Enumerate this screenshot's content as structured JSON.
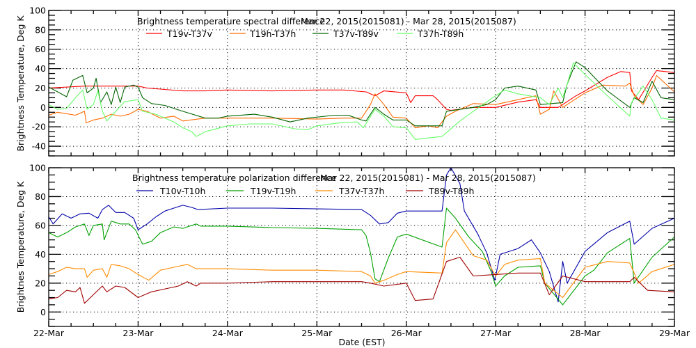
{
  "chart_data": [
    {
      "type": "line",
      "title": "Brightness temperature spectral difference",
      "date_range": "Mar 22, 2015(2015081) - Mar 28, 2015(2015087)",
      "xlabel": "",
      "ylabel": "Brightness Temperature, Deg K",
      "xlim": [
        22,
        29
      ],
      "ylim": [
        -50,
        100
      ],
      "yticks": [
        "100",
        "80",
        "60",
        "40",
        "20",
        "0",
        "-20",
        "-40"
      ],
      "ytick_values": [
        100,
        80,
        60,
        40,
        20,
        0,
        -20,
        -40
      ],
      "grid": true,
      "legend_placement": "top",
      "series": [
        {
          "name": "T19v-T37v",
          "color": "#ff0000",
          "x": [
            22,
            22.4,
            22.75,
            23,
            23.1,
            23.5,
            23.75,
            24,
            24.5,
            25,
            25.3,
            25.55,
            25.65,
            25.75,
            26,
            26.05,
            26.1,
            26.3,
            26.35,
            26.45,
            26.5,
            26.75,
            27,
            27.25,
            27.45,
            27.5,
            27.7,
            27.75,
            27.9,
            28,
            28.25,
            28.4,
            28.5,
            28.52,
            28.6,
            28.75,
            28.8,
            29
          ],
          "y": [
            20,
            22,
            22,
            22,
            20,
            17,
            17,
            18,
            17,
            18,
            18,
            16,
            12,
            17,
            15,
            5,
            12,
            12,
            8,
            -2,
            -3,
            0,
            0,
            5.5,
            8,
            0,
            0,
            3,
            12,
            17,
            31,
            37,
            36,
            17,
            8,
            31,
            38,
            36
          ]
        },
        {
          "name": "T19h-T37h",
          "color": "#ff6a00",
          "x": [
            22,
            22.1,
            22.3,
            22.4,
            22.42,
            22.5,
            22.6,
            22.7,
            22.8,
            22.9,
            23,
            23.1,
            23.25,
            23.4,
            23.5,
            23.75,
            24,
            24.5,
            25,
            25.3,
            25.5,
            25.6,
            25.65,
            25.75,
            25.85,
            26,
            26.1,
            26.25,
            26.35,
            26.45,
            26.55,
            26.75,
            27,
            27.25,
            27.45,
            27.5,
            27.6,
            27.65,
            27.75,
            28,
            28.2,
            28.45,
            28.5,
            28.55,
            28.65,
            28.75,
            28.8,
            29
          ],
          "y": [
            -8,
            -5,
            -8,
            -4,
            -16,
            -13,
            -11,
            -7,
            -9,
            -7,
            -2,
            -4,
            -11,
            -9,
            -14,
            -11,
            -11,
            -11,
            -12,
            -11,
            -11,
            3,
            14,
            3,
            -10,
            -11,
            -21,
            -19,
            -21,
            -9,
            -4,
            4,
            3,
            8,
            12,
            -7,
            -2,
            17,
            0,
            15,
            23,
            22,
            25,
            12,
            3,
            20,
            33,
            16
          ]
        },
        {
          "name": "T37v-T89v",
          "color": "#006400",
          "x": [
            22,
            22.1,
            22.2,
            22.27,
            22.38,
            22.43,
            22.5,
            22.53,
            22.58,
            22.65,
            22.7,
            22.75,
            22.8,
            22.85,
            22.95,
            23,
            23.05,
            23.15,
            23.3,
            23.5,
            23.75,
            23.9,
            24,
            24.3,
            24.5,
            24.7,
            24.9,
            25.2,
            25.35,
            25.5,
            25.55,
            25.65,
            25.75,
            25.85,
            26,
            26.1,
            26.4,
            26.45,
            26.75,
            26.9,
            27,
            27.1,
            27.25,
            27.45,
            27.5,
            27.75,
            27.8,
            27.9,
            28,
            28.25,
            28.5,
            28.55,
            28.65,
            28.75,
            28.85,
            29
          ],
          "y": [
            21,
            16,
            11,
            28,
            33,
            15,
            20,
            30,
            5,
            16,
            3,
            21,
            5,
            21,
            23,
            21,
            10,
            4,
            2,
            -4,
            -11,
            -11,
            -9,
            -7,
            -10,
            -15,
            -11,
            -8,
            -8,
            -13,
            -14,
            0,
            -7,
            -13,
            -13,
            -19,
            -19,
            -4,
            0,
            3,
            8,
            20,
            22,
            18,
            3,
            5,
            24,
            47,
            41,
            17,
            0,
            10,
            5,
            27,
            10,
            8
          ]
        },
        {
          "name": "T37h-T89h",
          "color": "#66ff66",
          "x": [
            22,
            22.1,
            22.2,
            22.3,
            22.38,
            22.43,
            22.5,
            22.55,
            22.6,
            22.65,
            22.75,
            22.85,
            23,
            23.05,
            23.2,
            23.4,
            23.5,
            23.6,
            23.65,
            23.75,
            24,
            24.25,
            24.5,
            24.75,
            24.9,
            25,
            25.25,
            25.45,
            25.52,
            25.65,
            25.75,
            25.85,
            26,
            26.1,
            26.4,
            26.45,
            26.6,
            26.75,
            27,
            27.1,
            27.25,
            27.5,
            27.6,
            27.7,
            27.75,
            27.8,
            27.87,
            28,
            28.25,
            28.5,
            28.52,
            28.65,
            28.75,
            28.85,
            29
          ],
          "y": [
            3,
            -2,
            -1,
            10,
            18,
            -2,
            3,
            17,
            -4,
            -14,
            -4,
            6,
            8,
            -4,
            -7,
            -15,
            -21,
            -25,
            -30,
            -25,
            -19,
            -17,
            -17,
            -22,
            -23,
            -19,
            -16,
            -15,
            -21,
            -2,
            -9,
            -20,
            -21,
            -33,
            -30,
            -26,
            -14,
            -4,
            12,
            18,
            14,
            10,
            3,
            20,
            10,
            24,
            46,
            34,
            12,
            -9,
            5,
            22,
            8,
            -11,
            -13
          ]
        }
      ]
    },
    {
      "type": "line",
      "title": "Brightness temperature polarization difference",
      "date_range": "Mar 22, 2015(2015081) - Mar 28, 2015(2015087)",
      "xlabel": "Date (EST)",
      "ylabel": "Brightnes Temperature, Deg K",
      "xlim": [
        22,
        29
      ],
      "ylim": [
        -10,
        100
      ],
      "xticks": [
        "22-Mar",
        "23-Mar",
        "24-Mar",
        "25-Mar",
        "26-Mar",
        "27-Mar",
        "28-Mar",
        "29-Mar"
      ],
      "xtick_values": [
        22,
        23,
        24,
        25,
        26,
        27,
        28,
        29
      ],
      "yticks": [
        "100",
        "80",
        "60",
        "40",
        "20",
        "0"
      ],
      "ytick_values": [
        100,
        80,
        60,
        40,
        20,
        0
      ],
      "grid": true,
      "legend_placement": "top",
      "series": [
        {
          "name": "T10v-T10h",
          "color": "#0000a8",
          "x": [
            22,
            22.05,
            22.15,
            22.25,
            22.35,
            22.45,
            22.55,
            22.6,
            22.67,
            22.75,
            22.85,
            22.95,
            23,
            23.1,
            23.2,
            23.3,
            23.4,
            23.5,
            23.6,
            23.67,
            24,
            24.5,
            25,
            25.5,
            25.6,
            25.7,
            25.8,
            25.9,
            26,
            26.4,
            26.45,
            26.5,
            26.6,
            26.65,
            26.8,
            26.9,
            26.99,
            27.05,
            27.25,
            27.4,
            27.5,
            27.6,
            27.7,
            27.75,
            27.8,
            28,
            28.25,
            28.5,
            28.55,
            28.75,
            29
          ],
          "y": [
            66,
            61,
            68,
            65,
            68,
            68.5,
            65,
            71,
            74,
            69,
            69,
            65,
            57,
            61,
            66,
            70,
            72,
            74,
            72.5,
            71,
            72,
            72,
            71.5,
            71,
            67,
            61,
            62,
            68.5,
            70,
            70,
            95,
            100,
            89,
            70,
            54,
            41,
            22,
            40,
            44,
            50,
            41,
            28,
            7,
            35,
            20,
            42,
            55,
            63,
            47,
            58,
            65
          ]
        },
        {
          "name": "T19v-T19h",
          "color": "#00a000",
          "x": [
            22,
            22.1,
            22.2,
            22.3,
            22.4,
            22.45,
            22.5,
            22.6,
            22.62,
            22.7,
            22.8,
            22.9,
            22.97,
            23.05,
            23.15,
            23.25,
            23.4,
            23.5,
            23.65,
            23.7,
            24,
            24.5,
            25,
            25.5,
            25.55,
            25.6,
            25.65,
            25.7,
            25.8,
            25.9,
            26,
            26.4,
            26.45,
            26.55,
            26.7,
            26.85,
            26.95,
            27,
            27.1,
            27.25,
            27.5,
            27.55,
            27.75,
            28,
            28.1,
            28.25,
            28.5,
            28.55,
            28.75,
            29
          ],
          "y": [
            55,
            52,
            55,
            59,
            61,
            53,
            60,
            61,
            50,
            63,
            61,
            61,
            57,
            47,
            49,
            55,
            59,
            58,
            61,
            59.5,
            59.5,
            58.5,
            58,
            57,
            53,
            41,
            23,
            21,
            37.5,
            52,
            54,
            45,
            72,
            65,
            52,
            42,
            28,
            18,
            25,
            31,
            32,
            20,
            5,
            25,
            29,
            41,
            51,
            20,
            38,
            52
          ]
        },
        {
          "name": "T37v-T37h",
          "color": "#ff8c00",
          "x": [
            22,
            22.1,
            22.2,
            22.3,
            22.4,
            22.43,
            22.5,
            22.6,
            22.65,
            22.7,
            22.8,
            22.9,
            23,
            23.12,
            23.25,
            23.4,
            23.55,
            23.65,
            24,
            24.5,
            25,
            25.5,
            25.6,
            25.65,
            25.75,
            25.9,
            26,
            26.4,
            26.45,
            26.55,
            26.75,
            26.9,
            27,
            27.1,
            27.25,
            27.5,
            27.55,
            27.75,
            28,
            28.25,
            28.5,
            28.6,
            28.75,
            29
          ],
          "y": [
            26,
            28,
            31,
            30,
            30,
            24,
            29,
            30,
            24,
            33,
            32,
            30,
            26,
            22,
            29,
            31,
            33,
            30,
            30,
            29,
            29,
            28,
            25,
            20,
            22,
            26,
            28,
            27,
            48,
            57,
            39,
            36,
            25,
            33,
            36,
            37,
            20,
            10,
            31,
            35,
            34,
            20,
            28,
            33
          ]
        },
        {
          "name": "T89v-T89h",
          "color": "#a00000",
          "x": [
            22,
            22.1,
            22.2,
            22.3,
            22.35,
            22.4,
            22.5,
            22.6,
            22.65,
            22.75,
            22.85,
            23,
            23.15,
            23.3,
            23.45,
            23.55,
            23.65,
            23.7,
            24,
            24.5,
            25,
            25.5,
            25.6,
            25.75,
            26,
            26.1,
            26.3,
            26.45,
            26.6,
            26.75,
            27,
            27.25,
            27.5,
            27.6,
            27.75,
            28,
            28.5,
            28.55,
            28.7,
            29
          ],
          "y": [
            9,
            10,
            15,
            14,
            17,
            6,
            12,
            18,
            14,
            18,
            17,
            10,
            14,
            16,
            18,
            21,
            18,
            20,
            20,
            21,
            21,
            21,
            20,
            18,
            20,
            8,
            9,
            35,
            38,
            25,
            26,
            27,
            27,
            12,
            25,
            21,
            21,
            24,
            15,
            14
          ]
        }
      ]
    }
  ]
}
